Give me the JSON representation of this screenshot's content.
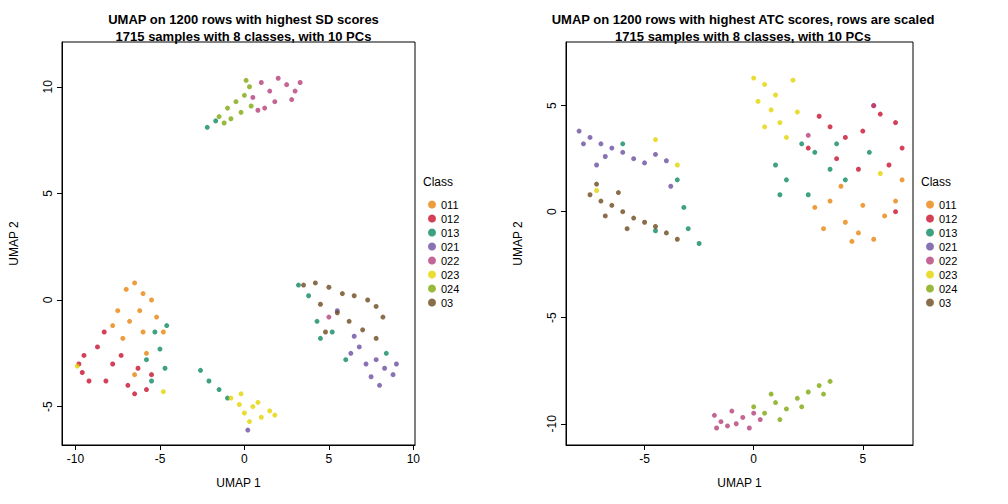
{
  "chart_data": [
    {
      "type": "scatter",
      "title": "UMAP on 1200 rows with highest SD scores\n1715 samples with 8 classes, with 10 PCs",
      "x_label": "UMAP 1",
      "y_label": "UMAP 2",
      "xlim": [
        -10.8,
        10.1
      ],
      "ylim": [
        -6.8,
        12.1
      ],
      "xticks": [
        -10,
        -5,
        0,
        5,
        10
      ],
      "yticks": [
        -5,
        0,
        5,
        10
      ],
      "grid": false,
      "legend": "right",
      "legend_title": "Class",
      "series": [
        {
          "name": "011",
          "color": "#E8850C",
          "values": [
            [
              -7,
              0.5
            ],
            [
              -6.5,
              0.8
            ],
            [
              -6,
              0.3
            ],
            [
              -7.5,
              -0.5
            ],
            [
              -6.8,
              -1
            ],
            [
              -6.2,
              -0.5
            ],
            [
              -5.5,
              0
            ],
            [
              -5.2,
              -0.8
            ],
            [
              -7.2,
              -1.8
            ],
            [
              -6,
              -1.5
            ],
            [
              -5.8,
              -2.5
            ],
            [
              -4.8,
              -1.5
            ],
            [
              -7.8,
              -1.2
            ],
            [
              -6.5,
              -3.5
            ]
          ]
        },
        {
          "name": "012",
          "color": "#C8102E",
          "values": [
            [
              -9.8,
              -3
            ],
            [
              -9.5,
              -2.6
            ],
            [
              -9.6,
              -3.4
            ],
            [
              -9.2,
              -3.8
            ],
            [
              -8.7,
              -2.2
            ],
            [
              -8.3,
              -1.5
            ],
            [
              -7.8,
              -3
            ],
            [
              -7.3,
              -2.6
            ],
            [
              -6.9,
              -4
            ],
            [
              -6.3,
              -3.2
            ],
            [
              -5.8,
              -4.2
            ],
            [
              -5.5,
              -3.5
            ],
            [
              -6.5,
              -4.4
            ],
            [
              -8.2,
              -3.8
            ]
          ]
        },
        {
          "name": "013",
          "color": "#0E8A63",
          "values": [
            [
              -5.3,
              -1.5
            ],
            [
              -5,
              -2.3
            ],
            [
              -4.7,
              -3.2
            ],
            [
              -5.5,
              -3.8
            ],
            [
              -5.8,
              -2.8
            ],
            [
              -4.6,
              -1.2
            ],
            [
              -2.6,
              -3.3
            ],
            [
              -2.1,
              -3.8
            ],
            [
              -1.5,
              -4.2
            ],
            [
              -1,
              -4.6
            ],
            [
              -2.2,
              8.1
            ],
            [
              -1.7,
              8.4
            ],
            [
              3.2,
              0.7
            ],
            [
              3.8,
              0.2
            ],
            [
              4.3,
              -1
            ],
            [
              4.5,
              -1.8
            ],
            [
              5.2,
              -1.5
            ],
            [
              6,
              -2.8
            ],
            [
              8.4,
              -2.5
            ]
          ]
        },
        {
          "name": "021",
          "color": "#6A4FA0",
          "values": [
            [
              6.3,
              -2.5
            ],
            [
              6.8,
              -2.2
            ],
            [
              7.2,
              -3
            ],
            [
              7.8,
              -2.8
            ],
            [
              8.3,
              -3.2
            ],
            [
              8.8,
              -3.5
            ],
            [
              9,
              -3
            ],
            [
              7.5,
              -3.6
            ],
            [
              8,
              -4
            ],
            [
              6.5,
              -1.7
            ],
            [
              0.2,
              -6.1
            ],
            [
              5.5,
              -0.5
            ]
          ]
        },
        {
          "name": "022",
          "color": "#B5407A",
          "values": [
            [
              0.5,
              9.5
            ],
            [
              1,
              10.2
            ],
            [
              1.5,
              9.8
            ],
            [
              2,
              10.4
            ],
            [
              2.5,
              10.1
            ],
            [
              3,
              9.8
            ],
            [
              3.3,
              10.2
            ],
            [
              1.8,
              9.3
            ],
            [
              2.8,
              9.4
            ],
            [
              1.2,
              9
            ],
            [
              0.8,
              8.9
            ],
            [
              5,
              -0.8
            ]
          ]
        },
        {
          "name": "023",
          "color": "#E3D400",
          "values": [
            [
              -0.8,
              -4.6
            ],
            [
              -0.3,
              -4.9
            ],
            [
              0,
              -5.3
            ],
            [
              0.5,
              -5
            ],
            [
              1,
              -5.5
            ],
            [
              1.5,
              -5.2
            ],
            [
              0.3,
              -5.7
            ],
            [
              -0.2,
              -4.4
            ],
            [
              0.8,
              -4.8
            ],
            [
              1.8,
              -5.4
            ],
            [
              -9.9,
              -3.1
            ],
            [
              -4.8,
              -4.3
            ]
          ]
        },
        {
          "name": "024",
          "color": "#7FA80C",
          "values": [
            [
              -1.5,
              8.6
            ],
            [
              -1,
              9
            ],
            [
              -0.5,
              9.3
            ],
            [
              0,
              9.6
            ],
            [
              0.3,
              10
            ],
            [
              -0.2,
              8.8
            ],
            [
              -0.8,
              8.5
            ],
            [
              0.4,
              9.1
            ],
            [
              -1.2,
              8.3
            ],
            [
              0.1,
              10.3
            ]
          ]
        },
        {
          "name": "03",
          "color": "#6B4A1E",
          "values": [
            [
              3.5,
              0.7
            ],
            [
              4.2,
              0.8
            ],
            [
              5,
              0.6
            ],
            [
              5.8,
              0.3
            ],
            [
              6.5,
              0.2
            ],
            [
              7.3,
              0
            ],
            [
              7.8,
              -0.3
            ],
            [
              4.5,
              -0.2
            ],
            [
              5.5,
              -0.6
            ],
            [
              6.2,
              -1
            ],
            [
              7,
              -1.4
            ],
            [
              7.8,
              -1.8
            ],
            [
              8.2,
              -0.8
            ],
            [
              4.8,
              -1.5
            ]
          ]
        }
      ]
    },
    {
      "type": "scatter",
      "title": "UMAP on 1200 rows with highest ATC scores, rows are scaled\n1715 samples with 8 classes, with 10 PCs",
      "x_label": "UMAP 1",
      "y_label": "UMAP 2",
      "xlim": [
        -8.6,
        7.3
      ],
      "ylim": [
        -11,
        8
      ],
      "xticks": [
        -5,
        0,
        5
      ],
      "yticks": [
        -10,
        -5,
        0,
        5
      ],
      "grid": false,
      "legend": "right",
      "legend_title": "Class",
      "series": [
        {
          "name": "011",
          "color": "#E8850C",
          "values": [
            [
              4,
              1.2
            ],
            [
              3.5,
              0.5
            ],
            [
              4.2,
              -0.5
            ],
            [
              4.8,
              -1
            ],
            [
              5.5,
              -1.3
            ],
            [
              6,
              -0.2
            ],
            [
              6.5,
              0.5
            ],
            [
              3.2,
              -0.8
            ],
            [
              5,
              0.3
            ],
            [
              6.8,
              1.5
            ],
            [
              2.8,
              0.2
            ],
            [
              4.5,
              -1.4
            ]
          ]
        },
        {
          "name": "012",
          "color": "#C8102E",
          "values": [
            [
              3,
              4.5
            ],
            [
              3.5,
              4
            ],
            [
              4.2,
              3.5
            ],
            [
              5,
              3.8
            ],
            [
              5.8,
              4.6
            ],
            [
              6.5,
              4.2
            ],
            [
              6.8,
              3
            ],
            [
              6.2,
              2.2
            ],
            [
              4.8,
              2
            ],
            [
              3.8,
              2.5
            ],
            [
              6.5,
              0
            ],
            [
              5.5,
              5
            ],
            [
              2.5,
              3
            ]
          ]
        },
        {
          "name": "013",
          "color": "#0E8A63",
          "values": [
            [
              1,
              2.2
            ],
            [
              1.5,
              1.5
            ],
            [
              2.2,
              3.2
            ],
            [
              2.8,
              2.8
            ],
            [
              3.5,
              2
            ],
            [
              4.2,
              1.5
            ],
            [
              2.5,
              0.8
            ],
            [
              3.8,
              3.2
            ],
            [
              5.3,
              2.8
            ],
            [
              1.2,
              0.8
            ],
            [
              -3.5,
              1.5
            ],
            [
              -3.2,
              0.2
            ],
            [
              -3,
              -0.8
            ],
            [
              -2.5,
              -1.5
            ],
            [
              -4.5,
              -0.9
            ],
            [
              -6,
              3.2
            ]
          ]
        },
        {
          "name": "021",
          "color": "#6A4FA0",
          "values": [
            [
              -8,
              3.8
            ],
            [
              -7.5,
              3.5
            ],
            [
              -7,
              3.2
            ],
            [
              -6.5,
              3
            ],
            [
              -6,
              2.8
            ],
            [
              -5.5,
              2.5
            ],
            [
              -5,
              2.3
            ],
            [
              -7.8,
              3.2
            ],
            [
              -6.8,
              2.6
            ],
            [
              -4.5,
              2.7
            ],
            [
              -4,
              2.4
            ],
            [
              -7.2,
              2.2
            ],
            [
              -3.8,
              1.2
            ]
          ]
        },
        {
          "name": "022",
          "color": "#B5407A",
          "values": [
            [
              -1.8,
              -9.6
            ],
            [
              -1.5,
              -9.9
            ],
            [
              -1.2,
              -10.1
            ],
            [
              -0.8,
              -10
            ],
            [
              -0.5,
              -9.7
            ],
            [
              0,
              -9.5
            ],
            [
              0.3,
              -9.8
            ],
            [
              -1,
              -9.4
            ],
            [
              -0.2,
              -10.2
            ],
            [
              -1.7,
              -10.2
            ],
            [
              5.5,
              5
            ],
            [
              2.5,
              3.6
            ]
          ]
        },
        {
          "name": "023",
          "color": "#E3D400",
          "values": [
            [
              0,
              6.3
            ],
            [
              0.5,
              6
            ],
            [
              0.2,
              5.2
            ],
            [
              0.8,
              4.8
            ],
            [
              1.2,
              4.2
            ],
            [
              0.5,
              4
            ],
            [
              1.5,
              3.5
            ],
            [
              1,
              5.5
            ],
            [
              1.8,
              6.2
            ],
            [
              2,
              4.7
            ],
            [
              -3.5,
              2.2
            ],
            [
              -4.5,
              3.4
            ],
            [
              -7.2,
              1
            ],
            [
              5.8,
              1.8
            ]
          ]
        },
        {
          "name": "024",
          "color": "#7FA80C",
          "values": [
            [
              0,
              -9.2
            ],
            [
              0.5,
              -9.5
            ],
            [
              1,
              -9
            ],
            [
              1.5,
              -9.3
            ],
            [
              2,
              -8.8
            ],
            [
              2.5,
              -8.5
            ],
            [
              3,
              -8.2
            ],
            [
              3.5,
              -8
            ],
            [
              1.2,
              -9.8
            ],
            [
              2.2,
              -9.2
            ],
            [
              0.8,
              -8.6
            ],
            [
              3.2,
              -8.6
            ]
          ]
        },
        {
          "name": "03",
          "color": "#6B4A1E",
          "values": [
            [
              -7.5,
              0.8
            ],
            [
              -7,
              0.5
            ],
            [
              -6.5,
              0.3
            ],
            [
              -6,
              0
            ],
            [
              -5.5,
              -0.3
            ],
            [
              -5,
              -0.5
            ],
            [
              -4.5,
              -0.7
            ],
            [
              -6.8,
              -0.2
            ],
            [
              -5.8,
              -0.8
            ],
            [
              -7.2,
              1.3
            ],
            [
              -4,
              -1
            ],
            [
              -6.2,
              0.9
            ],
            [
              -3.5,
              -1.3
            ]
          ]
        }
      ]
    }
  ]
}
